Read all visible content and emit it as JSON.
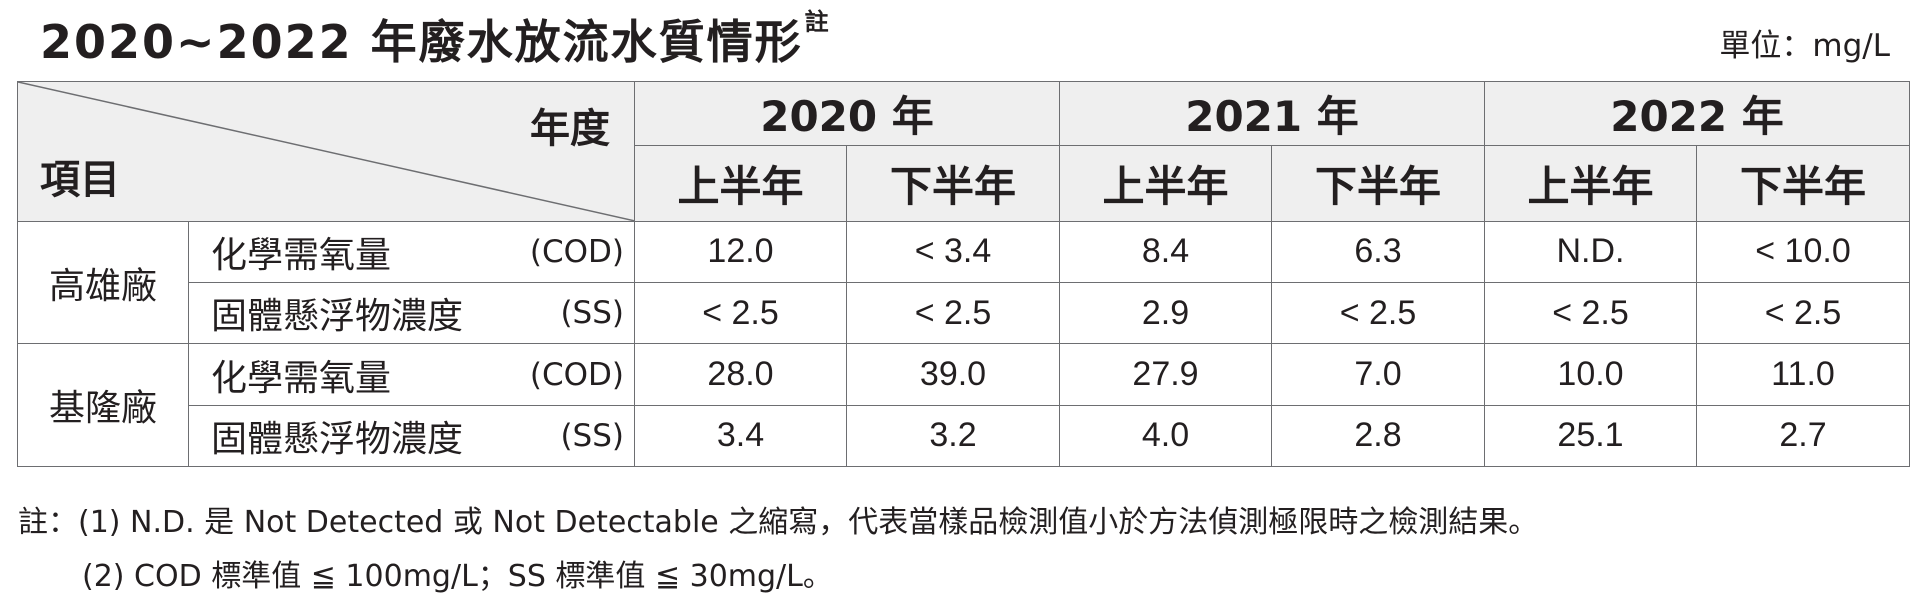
{
  "title": "2020~2022 年廢水放流水質情形",
  "title_note": "註",
  "unit": "單位：mg/L",
  "table": {
    "corner_top": "年度",
    "corner_bottom": "項目",
    "years": [
      "2020 年",
      "2021 年",
      "2022 年"
    ],
    "halves": [
      "上半年",
      "下半年",
      "上半年",
      "下半年",
      "上半年",
      "下半年"
    ],
    "plants": [
      {
        "name": "高雄廠",
        "rows": [
          {
            "param": "化學需氧量",
            "abbr": "(COD)",
            "values": [
              "12.0",
              "< 3.4",
              "8.4",
              "6.3",
              "N.D.",
              "< 10.0"
            ]
          },
          {
            "param": "固體懸浮物濃度",
            "abbr": "(SS)",
            "values": [
              "< 2.5",
              "< 2.5",
              "2.9",
              "< 2.5",
              "< 2.5",
              "< 2.5"
            ]
          }
        ]
      },
      {
        "name": "基隆廠",
        "rows": [
          {
            "param": "化學需氧量",
            "abbr": "(COD)",
            "values": [
              "28.0",
              "39.0",
              "27.9",
              "7.0",
              "10.0",
              "11.0"
            ]
          },
          {
            "param": "固體懸浮物濃度",
            "abbr": "(SS)",
            "values": [
              "3.4",
              "3.2",
              "4.0",
              "2.8",
              "25.1",
              "2.7"
            ]
          }
        ]
      }
    ]
  },
  "notes": [
    "註：(1) N.D. 是 Not Detected 或 Not Detectable 之縮寫，代表當樣品檢測值小於方法偵測極限時之檢測結果。",
    "(2) COD 標準值 ≦ 100mg/L；SS 標準值 ≦ 30mg/L。"
  ]
}
